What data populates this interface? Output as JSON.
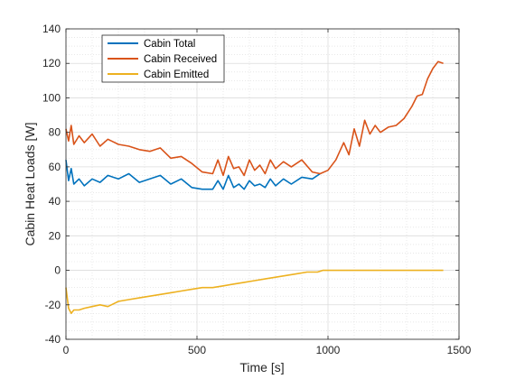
{
  "chart_data": {
    "type": "line",
    "xlabel": "Time [s]",
    "ylabel": "Cabin Heat Loads [W]",
    "xlim": [
      0,
      1500
    ],
    "ylim": [
      -40,
      140
    ],
    "xticks": [
      0,
      500,
      1000,
      1500
    ],
    "yticks": [
      -40,
      -20,
      0,
      20,
      40,
      60,
      80,
      100,
      120,
      140
    ],
    "grid": "major and minor (dotted)",
    "legend_position": "top-left",
    "series": [
      {
        "name": "Cabin Total",
        "color": "#0072BD",
        "x": [
          0,
          10,
          20,
          30,
          50,
          70,
          100,
          130,
          160,
          200,
          240,
          280,
          320,
          360,
          400,
          440,
          480,
          520,
          560,
          580,
          600,
          620,
          640,
          660,
          680,
          700,
          720,
          740,
          760,
          780,
          800,
          830,
          860,
          900,
          940,
          970
        ],
        "y": [
          64,
          52,
          59,
          50,
          53,
          49,
          53,
          51,
          55,
          53,
          56,
          51,
          53,
          55,
          50,
          53,
          48,
          47,
          47,
          52,
          47,
          55,
          48,
          50,
          47,
          52,
          49,
          50,
          48,
          53,
          49,
          53,
          50,
          54,
          53,
          56
        ]
      },
      {
        "name": "Cabin Received",
        "color": "#D95319",
        "x": [
          0,
          10,
          20,
          30,
          50,
          70,
          100,
          130,
          160,
          200,
          240,
          280,
          320,
          360,
          400,
          440,
          480,
          520,
          560,
          580,
          600,
          620,
          640,
          660,
          680,
          700,
          720,
          740,
          760,
          780,
          800,
          830,
          860,
          900,
          940,
          970,
          1000,
          1030,
          1060,
          1080,
          1100,
          1120,
          1140,
          1160,
          1180,
          1200,
          1230,
          1260,
          1290,
          1320,
          1340,
          1360,
          1380,
          1400,
          1420,
          1440
        ],
        "y": [
          82,
          75,
          84,
          73,
          78,
          74,
          79,
          72,
          76,
          73,
          72,
          70,
          69,
          71,
          65,
          66,
          62,
          57,
          56,
          64,
          55,
          66,
          59,
          60,
          55,
          64,
          58,
          61,
          56,
          64,
          59,
          63,
          60,
          64,
          57,
          56,
          58,
          64,
          74,
          67,
          82,
          72,
          87,
          79,
          84,
          80,
          83,
          84,
          88,
          95,
          101,
          102,
          111,
          117,
          121,
          120
        ]
      },
      {
        "name": "Cabin Emitted",
        "color": "#EDB120",
        "x": [
          0,
          10,
          20,
          30,
          50,
          70,
          100,
          130,
          160,
          200,
          240,
          280,
          320,
          360,
          400,
          440,
          480,
          520,
          560,
          600,
          640,
          680,
          720,
          760,
          800,
          840,
          880,
          920,
          960,
          980,
          1000,
          1100,
          1200,
          1300,
          1400,
          1440
        ],
        "y": [
          -10,
          -22,
          -25,
          -23,
          -23,
          -22,
          -21,
          -20,
          -21,
          -18,
          -17,
          -16,
          -15,
          -14,
          -13,
          -12,
          -11,
          -10,
          -10,
          -9,
          -8,
          -7,
          -6,
          -5,
          -4,
          -3,
          -2,
          -1,
          -1,
          0,
          0,
          0,
          0,
          0,
          0,
          0
        ]
      }
    ]
  }
}
